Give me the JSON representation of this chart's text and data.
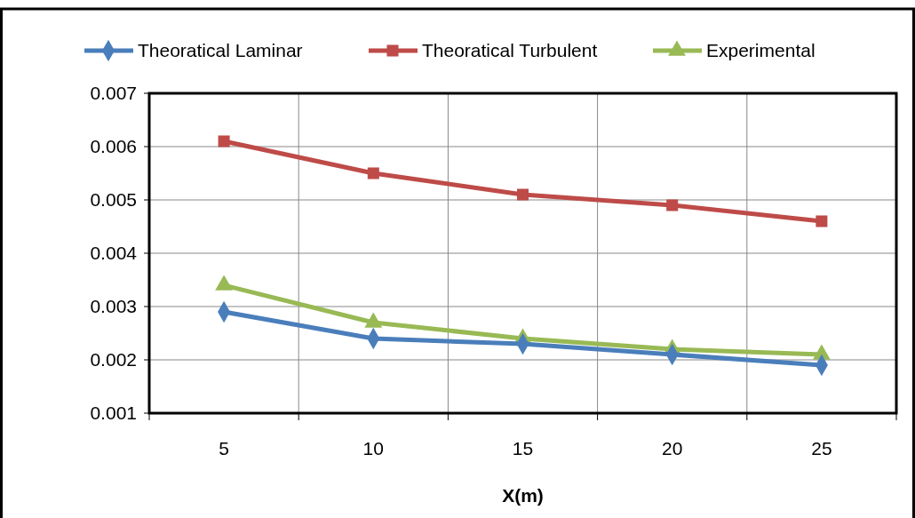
{
  "chart_data": {
    "type": "line",
    "xlabel": "X(m)",
    "categories": [
      "5",
      "10",
      "15",
      "20",
      "25"
    ],
    "series": [
      {
        "name": "Theoratical Laminar",
        "color": "#4a7ebb",
        "marker": "diamond",
        "values": [
          0.0029,
          0.0024,
          0.0023,
          0.0021,
          0.0019
        ]
      },
      {
        "name": "Theoratical Turbulent",
        "color": "#be4b48",
        "marker": "square",
        "values": [
          0.0061,
          0.0055,
          0.0051,
          0.0049,
          0.0046
        ]
      },
      {
        "name": "Experimental",
        "color": "#98b954",
        "marker": "triangle",
        "values": [
          0.0034,
          0.0027,
          0.0024,
          0.0022,
          0.0021
        ]
      }
    ],
    "ylim": [
      0.001,
      0.007
    ],
    "yticks": [
      0.001,
      0.002,
      0.003,
      0.004,
      0.005,
      0.006,
      0.007
    ],
    "grid": true,
    "legend": "top"
  }
}
